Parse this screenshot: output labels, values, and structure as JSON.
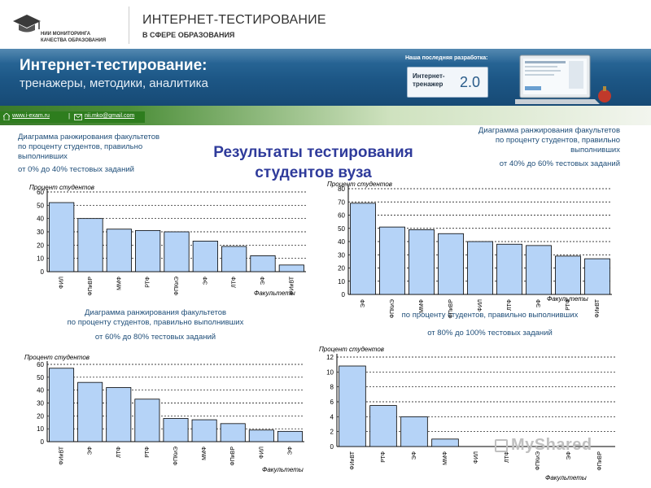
{
  "header": {
    "org_line1": "НИИ МОНИТОРИНГА",
    "org_line2": "КАЧЕСТВА ОБРАЗОВАНИЯ",
    "title": "ИНТЕРНЕТ-ТЕСТИРОВАНИЕ",
    "subtitle": "В СФЕРЕ ОБРАЗОВАНИЯ"
  },
  "banner": {
    "title": "Интернет-тестирование:",
    "subtitle": "тренажеры, методики, аналитика",
    "latest": "Наша последняя разработка:",
    "product_line1": "Интернет-",
    "product_line2": "тренажер",
    "product_version": "2.0"
  },
  "links": {
    "site": "www.i-exam.ru",
    "sep": "|",
    "email": "nii.mko@gmail.com"
  },
  "main_title_line1": "Результаты тестирования",
  "main_title_line2": "студентов вуза",
  "captions": {
    "c1_line1": "Диаграмма ранжирования факультетов",
    "c1_line2": "по проценту студентов, правильно",
    "c1_line3": "выполнивших",
    "c1_range": "от 0% до 40% тестовых заданий",
    "c2_line1": "Диаграмма ранжирования факультетов",
    "c2_line2": "по проценту студентов, правильно",
    "c2_line3": "выполнивших",
    "c2_range": "от 40% до 60% тестовых заданий",
    "c3_line1": "Диаграмма ранжирования факультетов",
    "c3_line2": "по проценту студентов, правильно выполнивших",
    "c3_range": "от 60% до 80% тестовых заданий",
    "c4_line1": "по проценту студентов, правильно выполнивших",
    "c4_range": "от 80% до 100% тестовых заданий"
  },
  "watermark": "MyShared",
  "colors": {
    "bar_fill": "#b5d3f7",
    "bar_stroke": "#000000",
    "title": "#2f3b9b",
    "caption": "#1f4e79",
    "banner": "#1c5685"
  },
  "chart_data": [
    {
      "type": "bar",
      "ylabel": "Процент студентов",
      "xlabel": "Факультеты",
      "ylim": [
        0,
        60
      ],
      "yticks": [
        0,
        10,
        20,
        30,
        40,
        50,
        60
      ],
      "grid": true,
      "categories": [
        "ФИЛ",
        "ФПиВР",
        "ММФ",
        "РТФ",
        "ФПКиЭ",
        "ЭФ",
        "ЛТФ",
        "ЭФ",
        "ФИиВТ"
      ],
      "values": [
        52,
        40,
        32,
        31,
        30,
        23,
        19,
        12,
        5
      ]
    },
    {
      "type": "bar",
      "ylabel": "Процент студентов",
      "xlabel": "Факультеты",
      "ylim": [
        0,
        80
      ],
      "yticks": [
        0,
        10,
        20,
        30,
        40,
        50,
        60,
        70,
        80
      ],
      "grid": true,
      "categories": [
        "ЭФ",
        "ФПКиЭ",
        "ММФ",
        "ФПиВР",
        "ФИЛ",
        "ЛТФ",
        "ЭФ",
        "РТФ",
        "ФИиВТ"
      ],
      "values": [
        69,
        51,
        49,
        46,
        40,
        38,
        37,
        29,
        27
      ]
    },
    {
      "type": "bar",
      "ylabel": "Процент студентов",
      "xlabel": "Факультеты",
      "ylim": [
        0,
        60
      ],
      "yticks": [
        0,
        10,
        20,
        30,
        40,
        50,
        60
      ],
      "grid": true,
      "categories": [
        "ФИиВТ",
        "ЭФ",
        "ЛТФ",
        "РТФ",
        "ФПКиЭ",
        "ММФ",
        "ФПиВР",
        "ФИЛ",
        "ЭФ"
      ],
      "values": [
        57,
        46,
        42,
        33,
        18,
        17,
        14,
        9,
        8
      ]
    },
    {
      "type": "bar",
      "ylabel": "Процент студентов",
      "xlabel": "Факультеты",
      "ylim": [
        0,
        12
      ],
      "yticks": [
        0,
        2,
        4,
        6,
        8,
        10,
        12
      ],
      "grid": true,
      "categories": [
        "ФИиВТ",
        "РТФ",
        "ЭФ",
        "ММФ",
        "ФИЛ",
        "ЛТФ",
        "ФПКиЭ",
        "ЭФ",
        "ФПиВР"
      ],
      "values": [
        10.8,
        5.5,
        4,
        1,
        0,
        0,
        0,
        0,
        0
      ]
    }
  ]
}
